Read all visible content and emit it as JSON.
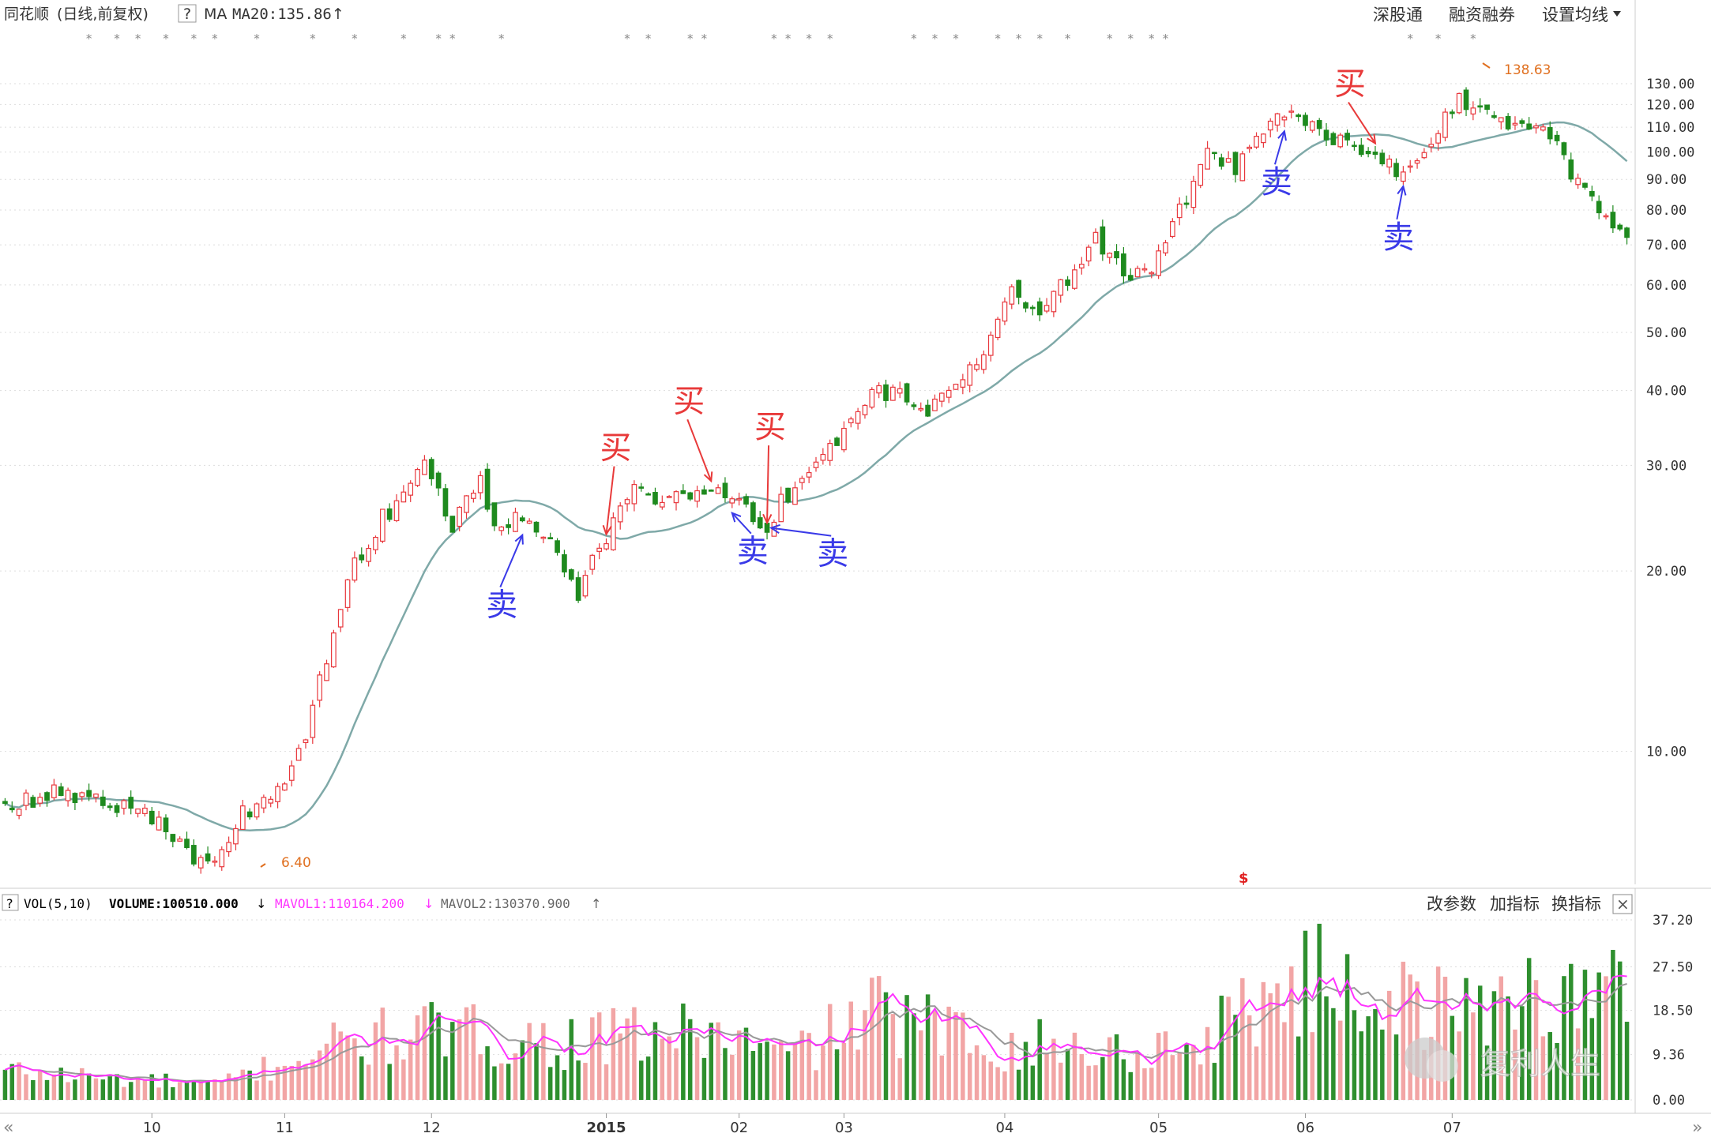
{
  "header": {
    "title": "同花顺",
    "mode": "(日线,前复权)",
    "help": "?",
    "ma_label": "MA",
    "ma20_text": "MA20:135.86",
    "ma20_arrow": "↑",
    "buttons": [
      "深股通",
      "融资融券",
      "设置均线"
    ],
    "dropdown_icon": "triangle-down"
  },
  "main_chart": {
    "price_ticks": [
      "130.00",
      "120.00",
      "110.00",
      "100.00",
      "90.00",
      "80.00",
      "70.00",
      "60.00",
      "50.00",
      "40.00",
      "30.00",
      "20.00",
      "10.00"
    ],
    "high_label": "138.63",
    "low_label": "6.40",
    "dollar_marker": "$",
    "signals": [
      {
        "text": "买",
        "color": "#e83a3a"
      },
      {
        "text": "买",
        "color": "#e83a3a"
      },
      {
        "text": "买",
        "color": "#e83a3a"
      },
      {
        "text": "买",
        "color": "#e83a3a"
      },
      {
        "text": "卖",
        "color": "#3a3ae8"
      },
      {
        "text": "卖",
        "color": "#3a3ae8"
      },
      {
        "text": "卖",
        "color": "#3a3ae8"
      },
      {
        "text": "卖",
        "color": "#3a3ae8"
      },
      {
        "text": "卖",
        "color": "#3a3ae8"
      }
    ],
    "colors": {
      "up": "#e8383d",
      "down": "#1e8a1e",
      "ma": "#7fa9a8",
      "grid": "#dddddd"
    }
  },
  "volume_panel": {
    "help": "?",
    "vol_label": "VOL(5,10)",
    "volume_text": "VOLUME:100510.000",
    "volume_arrow": "↓",
    "mavol1_text": "MAVOL1:110164.200",
    "mavol1_arrow": "↓",
    "mavol2_text": "MAVOL2:130370.900",
    "mavol2_arrow": "↑",
    "buttons": [
      "改参数",
      "加指标",
      "换指标"
    ],
    "close_icon": "×",
    "ticks": [
      "37.20",
      "27.50",
      "18.50",
      "9.36",
      "0.00"
    ],
    "colors": {
      "mavol1": "#ff33ff",
      "mavol2": "#888888"
    }
  },
  "x_axis": {
    "labels": [
      "10",
      "11",
      "12",
      "2015",
      "02",
      "03",
      "04",
      "05",
      "06",
      "07"
    ],
    "nav_left": "«",
    "nav_right": "»"
  },
  "watermark": "复利人生",
  "chart_data": [
    {
      "type": "candlestick",
      "title": "",
      "yscale": "log",
      "ylim": [
        6.0,
        145.0
      ],
      "ma_period": 20,
      "anchors": [
        [
          0,
          8.1
        ],
        [
          8,
          8.6
        ],
        [
          14,
          8.3
        ],
        [
          20,
          7.9
        ],
        [
          26,
          6.8
        ],
        [
          30,
          6.4
        ],
        [
          34,
          7.9
        ],
        [
          38,
          8.5
        ],
        [
          42,
          9.8
        ],
        [
          46,
          14.5
        ],
        [
          50,
          20.5
        ],
        [
          54,
          24.5
        ],
        [
          58,
          27.5
        ],
        [
          60,
          30.2
        ],
        [
          64,
          24.0
        ],
        [
          68,
          28.5
        ],
        [
          70,
          23.5
        ],
        [
          74,
          25.0
        ],
        [
          78,
          23.0
        ],
        [
          82,
          18.5
        ],
        [
          86,
          23.0
        ],
        [
          90,
          27.0
        ],
        [
          94,
          26.0
        ],
        [
          98,
          27.0
        ],
        [
          102,
          27.5
        ],
        [
          106,
          25.0
        ],
        [
          108,
          23.0
        ],
        [
          112,
          27.0
        ],
        [
          116,
          30.0
        ],
        [
          120,
          34.0
        ],
        [
          124,
          40.0
        ],
        [
          128,
          39.0
        ],
        [
          132,
          37.0
        ],
        [
          136,
          40.0
        ],
        [
          140,
          46.0
        ],
        [
          142,
          54.0
        ],
        [
          144,
          58.0
        ],
        [
          148,
          55.0
        ],
        [
          152,
          62.0
        ],
        [
          156,
          72.0
        ],
        [
          160,
          62.0
        ],
        [
          164,
          63.0
        ],
        [
          168,
          80.0
        ],
        [
          172,
          98.0
        ],
        [
          176,
          95.0
        ],
        [
          180,
          110.0
        ],
        [
          184,
          120.0
        ],
        [
          188,
          108.0
        ],
        [
          192,
          104.0
        ],
        [
          196,
          100.0
        ],
        [
          200,
          90.0
        ],
        [
          204,
          104.0
        ],
        [
          208,
          124.0
        ],
        [
          212,
          115.0
        ],
        [
          216,
          108.0
        ],
        [
          220,
          112.0
        ],
        [
          224,
          92.0
        ],
        [
          228,
          80.0
        ],
        [
          232,
          70.0
        ]
      ]
    },
    {
      "type": "bar",
      "title": "",
      "series": [
        {
          "name": "VOLUME"
        },
        {
          "name": "MAVOL1"
        },
        {
          "name": "MAVOL2"
        }
      ],
      "ylim": [
        0,
        37.2
      ],
      "anchors": [
        [
          0,
          6.0
        ],
        [
          30,
          3.0
        ],
        [
          36,
          6.0
        ],
        [
          46,
          11.0
        ],
        [
          60,
          14.0
        ],
        [
          80,
          12.0
        ],
        [
          100,
          14.0
        ],
        [
          112,
          9.0
        ],
        [
          124,
          18.0
        ],
        [
          140,
          12.0
        ],
        [
          160,
          10.0
        ],
        [
          172,
          12.0
        ],
        [
          178,
          21.0
        ],
        [
          190,
          25.0
        ],
        [
          200,
          20.0
        ],
        [
          210,
          18.0
        ],
        [
          216,
          24.0
        ],
        [
          222,
          20.0
        ],
        [
          232,
          23.0
        ]
      ]
    }
  ]
}
